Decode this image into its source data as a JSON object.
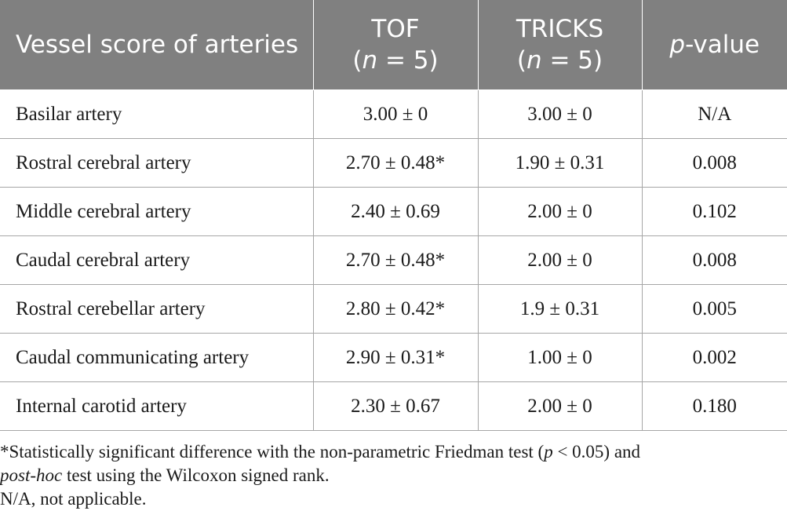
{
  "table": {
    "headers": {
      "col1": "Vessel score of arteries",
      "col2_line1": "TOF",
      "col2_n_var": "n",
      "col2_n_rest": " = 5)",
      "col3_line1": "TRICKS",
      "col3_n_var": "n",
      "col3_n_rest": " = 5)",
      "col4_var": "p",
      "col4_rest": "-value"
    },
    "rows": [
      {
        "artery": "Basilar artery",
        "tof": "3.00 ± 0",
        "tricks": "3.00 ± 0",
        "p": "N/A"
      },
      {
        "artery": "Rostral cerebral artery",
        "tof": "2.70 ± 0.48*",
        "tricks": "1.90 ± 0.31",
        "p": "0.008"
      },
      {
        "artery": "Middle cerebral artery",
        "tof": "2.40 ± 0.69",
        "tricks": "2.00 ± 0",
        "p": "0.102"
      },
      {
        "artery": "Caudal cerebral artery",
        "tof": "2.70 ± 0.48*",
        "tricks": "2.00 ± 0",
        "p": "0.008"
      },
      {
        "artery": "Rostral cerebellar artery",
        "tof": "2.80 ± 0.42*",
        "tricks": "1.9 ± 0.31",
        "p": "0.005"
      },
      {
        "artery": "Caudal communicating artery",
        "tof": "2.90 ± 0.31*",
        "tricks": "1.00 ± 0",
        "p": "0.002"
      },
      {
        "artery": "Internal carotid artery",
        "tof": "2.30 ± 0.67",
        "tricks": "2.00 ± 0",
        "p": "0.180"
      }
    ]
  },
  "footnotes": {
    "line1_part1": "*Statistically significant difference with the non-parametric Friedman test (",
    "line1_p": "p",
    "line1_part2": " < 0.05) and",
    "line2_italic": "post-hoc",
    "line2_rest": " test using the Wilcoxon signed rank.",
    "line3": "N/A, not applicable."
  },
  "colors": {
    "header_bg": "#808080",
    "header_text": "#ffffff",
    "grid_line": "#a6a6a6"
  }
}
